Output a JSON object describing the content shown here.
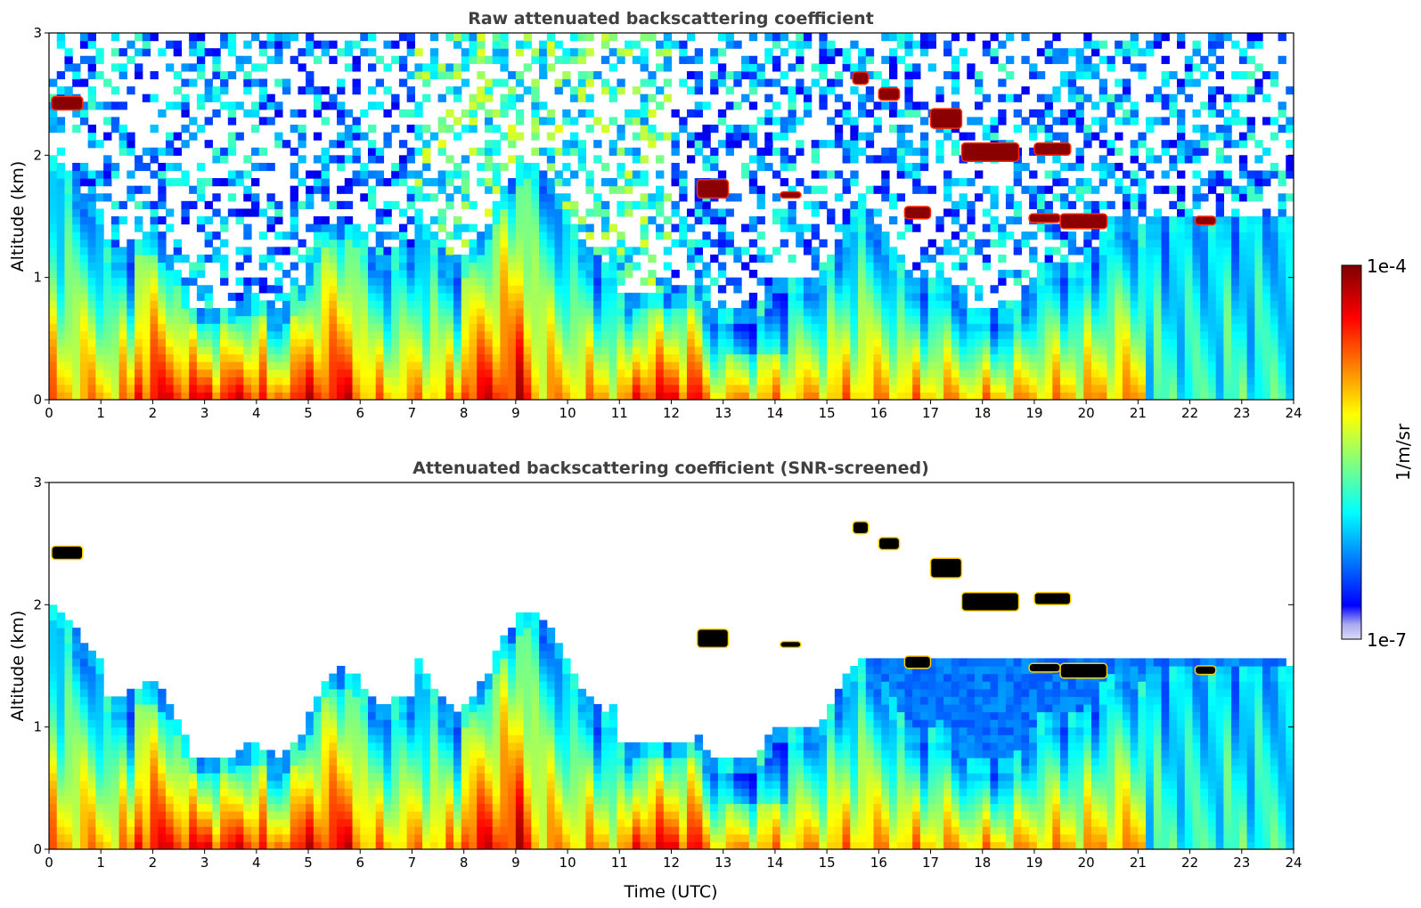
{
  "chart_data": [
    {
      "type": "heatmap",
      "title": "Raw attenuated backscattering coefficient",
      "xlabel": "",
      "ylabel": "Altitude (km)",
      "xlim": [
        0,
        24
      ],
      "ylim": [
        0,
        3
      ],
      "xticks": [
        "0",
        "1",
        "2",
        "3",
        "4",
        "5",
        "6",
        "7",
        "8",
        "9",
        "10",
        "11",
        "12",
        "13",
        "14",
        "15",
        "16",
        "17",
        "18",
        "19",
        "20",
        "21",
        "22",
        "23",
        "24"
      ],
      "yticks": [
        "0",
        "1",
        "2",
        "3"
      ],
      "screened": false
    },
    {
      "type": "heatmap",
      "title": "Attenuated backscattering coefficient (SNR-screened)",
      "xlabel": "Time (UTC)",
      "ylabel": "Altitude (km)",
      "xlim": [
        0,
        24
      ],
      "ylim": [
        0,
        3
      ],
      "xticks": [
        "0",
        "1",
        "2",
        "3",
        "4",
        "5",
        "6",
        "7",
        "8",
        "9",
        "10",
        "11",
        "12",
        "13",
        "14",
        "15",
        "16",
        "17",
        "18",
        "19",
        "20",
        "21",
        "22",
        "23",
        "24"
      ],
      "yticks": [
        "0",
        "1",
        "2",
        "3"
      ],
      "screened": true
    }
  ],
  "colorbar": {
    "label": "1/m/sr",
    "max_label": "1e-4",
    "min_label": "1e-7",
    "colormap": "jet",
    "scale": "log"
  },
  "colors": {
    "title": "#404040",
    "cloud": "#8b0000",
    "saturated": "#000000"
  }
}
